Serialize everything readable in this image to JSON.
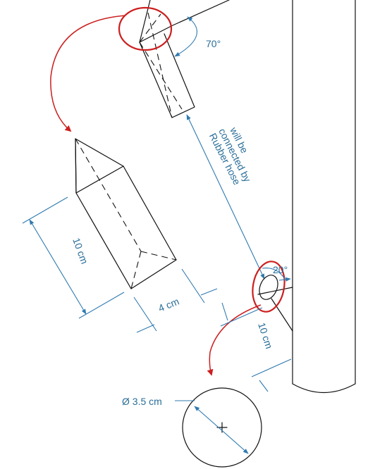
{
  "labels": {
    "angle_top": "70°",
    "angle_bottom": "20°",
    "hose_note_line1": "will be",
    "hose_note_line2": "connected by",
    "hose_note_line3": "Rubber hose",
    "length_prism": "10 cm",
    "width_prism": "4 cm",
    "length_pipe": "10 cm",
    "diameter": "Ø 3.5 cm"
  },
  "colors": {
    "outline": "#111111",
    "dimension": "#2f7ab0",
    "highlight": "#cc1f1f",
    "text": "#2a6e99"
  }
}
